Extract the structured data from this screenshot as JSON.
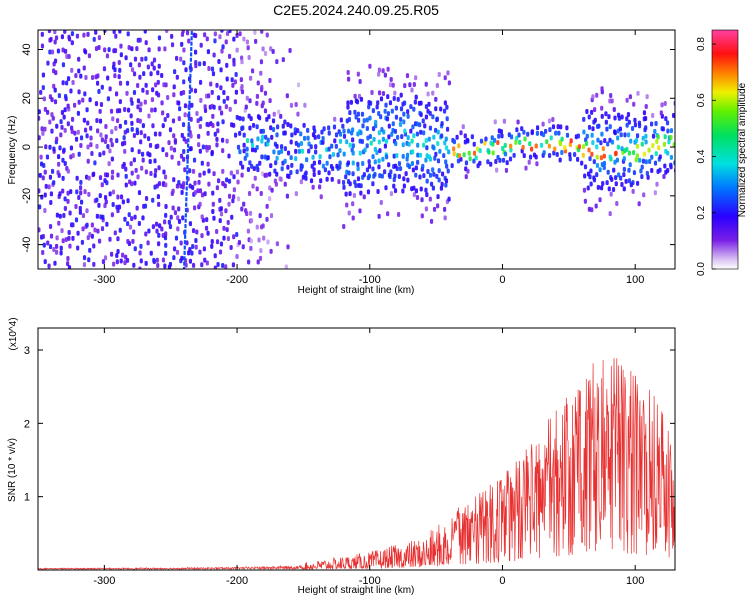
{
  "title": "C2E5.2024.240.09.25.R05",
  "chart_data": [
    {
      "type": "heatmap",
      "xlabel": "Height of straight line (km)",
      "ylabel": "Frequency (Hz)",
      "xlim": [
        -350,
        130
      ],
      "ylim": [
        -50,
        48
      ],
      "xticks": [
        -300,
        -200,
        -100,
        0,
        100
      ],
      "yticks": [
        -40,
        -20,
        0,
        20,
        40
      ],
      "colorbar": {
        "label": "Normalized spectral amplitude",
        "range": [
          0.0,
          0.85
        ],
        "ticks": [
          "0.0",
          "0.2",
          "0.4",
          "0.6",
          "0.8"
        ],
        "colormap": "rainbow (purple-blue-cyan-green-yellow-red-magenta)"
      },
      "features": {
        "noise_region_km": [
          -350,
          -150
        ],
        "narrowband_signal_km": [
          -200,
          130
        ],
        "signal_center_hz": 0,
        "drift_line_km": -240
      }
    },
    {
      "type": "line",
      "xlabel": "Height of straight line (km)",
      "ylabel": "SNR (10 * v/v)",
      "y_multiplier": "(x10^4)",
      "xlim": [
        -350,
        130
      ],
      "ylim": [
        0,
        3.3
      ],
      "xticks": [
        -300,
        -200,
        -100,
        0,
        100
      ],
      "yticks": [
        1,
        2,
        3
      ],
      "color": "#e83030",
      "envelope_x": [
        -350,
        -250,
        -200,
        -150,
        -100,
        -60,
        -30,
        0,
        20,
        40,
        60,
        75,
        90,
        110,
        130
      ],
      "envelope_y": [
        0.03,
        0.04,
        0.06,
        0.1,
        0.25,
        0.45,
        0.9,
        1.3,
        1.7,
        2.2,
        2.6,
        3.0,
        2.9,
        2.5,
        2.0
      ]
    }
  ]
}
